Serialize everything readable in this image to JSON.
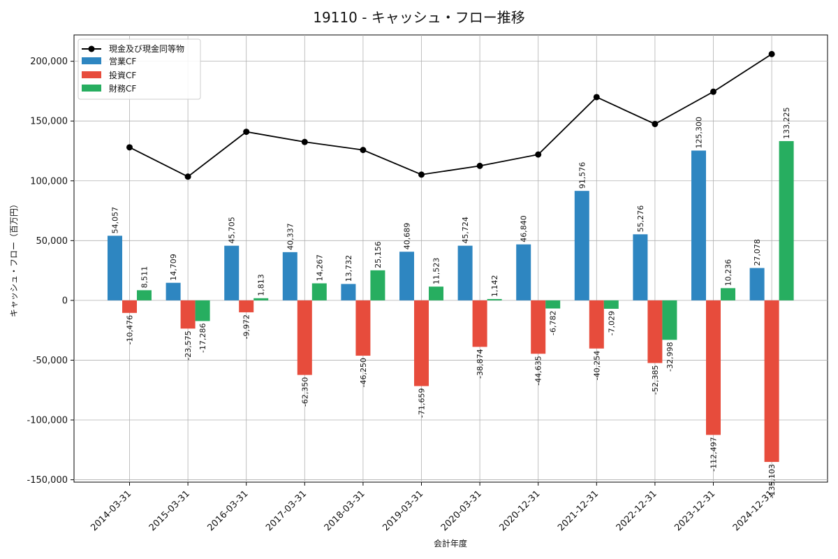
{
  "chart_data": {
    "type": "bar",
    "title": "19110 - キャッシュ・フロー推移",
    "xlabel": "会計年度",
    "ylabel": "キャッシュ・フロー（百万円）",
    "ylim": [
      -152000,
      222000
    ],
    "yticks": [
      -150000,
      -100000,
      -50000,
      0,
      50000,
      100000,
      150000,
      200000
    ],
    "ytick_labels": [
      "-150,000",
      "-100,000",
      "-50,000",
      "0",
      "50,000",
      "100,000",
      "150,000",
      "200,000"
    ],
    "grid": true,
    "legend_position": "top-left",
    "categories": [
      "2014-03-31",
      "2015-03-31",
      "2016-03-31",
      "2017-03-31",
      "2018-03-31",
      "2019-03-31",
      "2020-03-31",
      "2020-12-31",
      "2021-12-31",
      "2022-12-31",
      "2023-12-31",
      "2024-12-31"
    ],
    "series": [
      {
        "name": "現金及び現金同等物",
        "kind": "line",
        "color": "#000000",
        "values": [
          128000,
          103500,
          141000,
          132500,
          125800,
          105200,
          112500,
          122000,
          170000,
          147500,
          174500,
          206000
        ]
      },
      {
        "name": "営業CF",
        "kind": "bar",
        "color": "#2e86c1",
        "values": [
          54057,
          14709,
          45705,
          40337,
          13732,
          40689,
          45724,
          46840,
          91576,
          55276,
          125300,
          27078
        ],
        "labels": [
          "54,057",
          "14,709",
          "45,705",
          "40,337",
          "13,732",
          "40,689",
          "45,724",
          "46,840",
          "91,576",
          "55,276",
          "125,300",
          "27,078"
        ]
      },
      {
        "name": "投資CF",
        "kind": "bar",
        "color": "#e74c3c",
        "values": [
          -10476,
          -23575,
          -9972,
          -62350,
          -46250,
          -71659,
          -38874,
          -44635,
          -40254,
          -52385,
          -112497,
          -135103
        ],
        "labels": [
          "-10,476",
          "-23,575",
          "-9,972",
          "-62,350",
          "-46,250",
          "-71,659",
          "-38,874",
          "-44,635",
          "-40,254",
          "-52,385",
          "-112,497",
          "-135,103"
        ]
      },
      {
        "name": "財務CF",
        "kind": "bar",
        "color": "#27ae60",
        "values": [
          8511,
          -17286,
          1813,
          14267,
          25156,
          11523,
          1142,
          -6782,
          -7029,
          -32998,
          10236,
          133225
        ],
        "labels": [
          "8,511",
          "-17,286",
          "1,813",
          "14,267",
          "25,156",
          "11,523",
          "1,142",
          "-6,782",
          "-7,029",
          "-32,998",
          "10,236",
          "133,225"
        ]
      }
    ]
  }
}
